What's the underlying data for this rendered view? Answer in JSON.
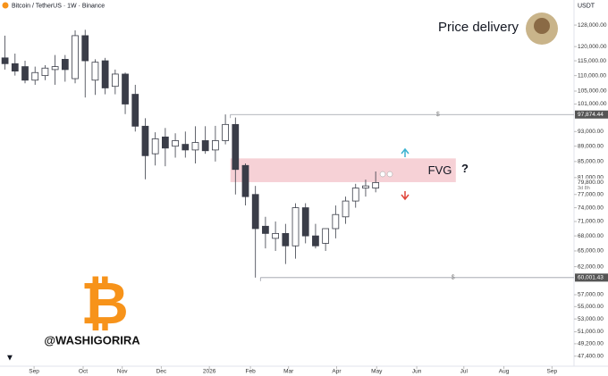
{
  "chart_data": {
    "type": "candlestick",
    "title": "Bitcoin / TetherUS · 1W · Binance",
    "currency": "USDT",
    "log_scale": true,
    "up_color": "#ffffff",
    "down_color": "#3a3d48",
    "x": [
      0,
      1,
      2,
      3,
      4,
      5,
      6,
      7,
      8,
      9,
      10,
      11,
      12,
      13,
      14,
      15,
      16,
      17,
      18,
      19,
      20,
      21,
      22,
      23,
      24,
      25,
      26,
      27,
      28,
      29,
      30,
      31,
      32,
      33,
      34,
      35,
      36,
      37
    ],
    "open": [
      116000,
      114000,
      113000,
      108500,
      110000,
      112000,
      115500,
      109000,
      124000,
      108500,
      115000,
      106500,
      110500,
      104000,
      94500,
      87000,
      91500,
      89000,
      89500,
      88000,
      90500,
      88000,
      90500,
      95000,
      84000,
      77000,
      70000,
      67500,
      68500,
      66000,
      74000,
      68000,
      66500,
      69500,
      72000,
      75500,
      78500,
      78500
    ],
    "high": [
      124000,
      117500,
      115000,
      113000,
      113500,
      117000,
      117000,
      126000,
      126200,
      115500,
      116000,
      112000,
      111000,
      107000,
      96800,
      92800,
      94000,
      92500,
      93000,
      94500,
      94500,
      94600,
      97900,
      97000,
      84500,
      79000,
      72000,
      71000,
      70500,
      75000,
      75000,
      70500,
      69500,
      74500,
      76500,
      79500,
      80500,
      82500
    ],
    "low": [
      112000,
      110000,
      107500,
      107000,
      108500,
      107000,
      108000,
      107500,
      103000,
      103800,
      104000,
      104000,
      98000,
      93000,
      80600,
      84000,
      83800,
      86000,
      86000,
      84500,
      87000,
      85000,
      89500,
      77000,
      74500,
      60001.43,
      65500,
      65000,
      62500,
      63500,
      66500,
      65500,
      65000,
      67500,
      70500,
      74000,
      76500,
      77500
    ],
    "close": [
      114000,
      111500,
      108500,
      111000,
      112500,
      113000,
      112000,
      124000,
      115000,
      114500,
      106000,
      110500,
      101000,
      94500,
      86500,
      91000,
      88500,
      90500,
      88000,
      90000,
      87800,
      90500,
      95000,
      83000,
      76500,
      69500,
      68500,
      68500,
      66000,
      74000,
      68000,
      66000,
      69500,
      72500,
      75500,
      78500,
      79000,
      79800
    ],
    "xlim": [
      -0.5,
      56.8
    ],
    "xticks": [
      {
        "value": 2.9,
        "label": "Sep"
      },
      {
        "value": 7.8,
        "label": "Oct"
      },
      {
        "value": 11.7,
        "label": "Nov"
      },
      {
        "value": 15.6,
        "label": "Dec"
      },
      {
        "value": 20.4,
        "label": "2026"
      },
      {
        "value": 24.5,
        "label": "Feb"
      },
      {
        "value": 28.3,
        "label": "Mar"
      },
      {
        "value": 33.1,
        "label": "Apr"
      },
      {
        "value": 37.1,
        "label": "May"
      },
      {
        "value": 41.1,
        "label": "Jun"
      },
      {
        "value": 45.8,
        "label": "Jul"
      },
      {
        "value": 49.8,
        "label": "Aug"
      },
      {
        "value": 54.6,
        "label": "Sep"
      }
    ],
    "ylim": [
      46000,
      138000
    ],
    "yticks": [
      {
        "value": 128000,
        "label": "128,000.00"
      },
      {
        "value": 120000,
        "label": "120,000.00"
      },
      {
        "value": 115000,
        "label": "115,000.00"
      },
      {
        "value": 110000,
        "label": "110,000.00"
      },
      {
        "value": 105000,
        "label": "105,000.00"
      },
      {
        "value": 101000,
        "label": "101,000.00"
      },
      {
        "value": 93000,
        "label": "93,000.00"
      },
      {
        "value": 89000,
        "label": "89,000.00"
      },
      {
        "value": 85000,
        "label": "85,000.00"
      },
      {
        "value": 81000,
        "label": "81,000.00"
      },
      {
        "value": 77000,
        "label": "77,000.00"
      },
      {
        "value": 74000,
        "label": "74,000.00"
      },
      {
        "value": 71000,
        "label": "71,000.00"
      },
      {
        "value": 68000,
        "label": "68,000.00"
      },
      {
        "value": 65000,
        "label": "65,000.00"
      },
      {
        "value": 62000,
        "label": "62,000.00"
      },
      {
        "value": 57000,
        "label": "57,000.00"
      },
      {
        "value": 55000,
        "label": "55,000.00"
      },
      {
        "value": 53000,
        "label": "53,000.00"
      },
      {
        "value": 51000,
        "label": "51,000.00"
      },
      {
        "value": 49200,
        "label": "49,200.00"
      },
      {
        "value": 47400,
        "label": "47,400.00"
      }
    ],
    "levels": [
      {
        "value": 97874.44,
        "label": "97,874.44",
        "start": 22.5,
        "marker": "$"
      },
      {
        "value": 60001.43,
        "label": "60,001.43",
        "start": 25.5,
        "marker": "$"
      }
    ],
    "last_price": {
      "value": 79800,
      "label": "79,800.00",
      "countdown": "3d 8h"
    },
    "fvg": {
      "low": 79900,
      "high": 85800,
      "start": 22.5,
      "end": 45,
      "label": "FVG",
      "note": "?"
    },
    "annotation": "Price delivery",
    "watermark": "@WASHIGORIRA"
  }
}
